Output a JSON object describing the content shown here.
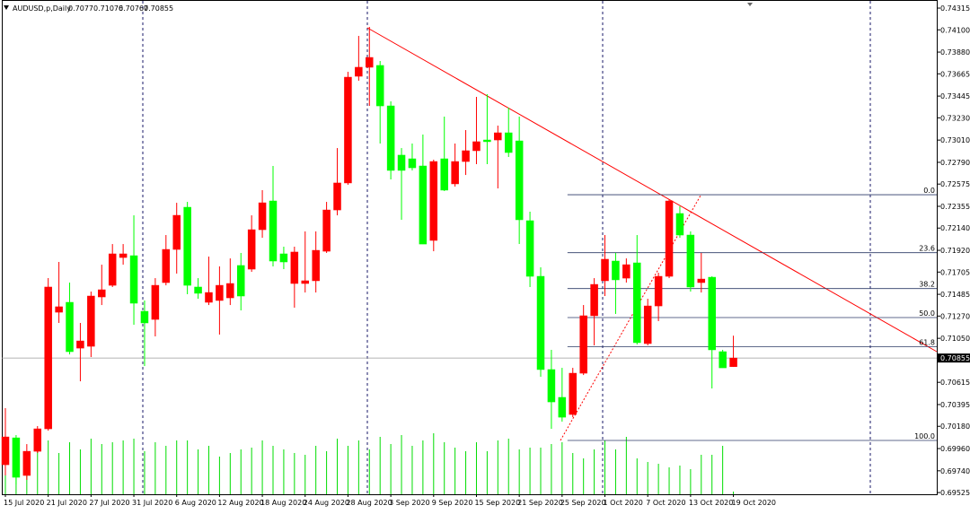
{
  "chart_data": {
    "type": "candlestick",
    "title": "AUDUSD,p,Daily",
    "categories": [
      "15 Jul 2020",
      null,
      null,
      null,
      "21 Jul 2020",
      null,
      null,
      null,
      "27 Jul 2020",
      null,
      null,
      null,
      "31 Jul 2020",
      null,
      null,
      null,
      "6 Aug 2020",
      null,
      null,
      null,
      "12 Aug 2020",
      null,
      null,
      null,
      "18 Aug 2020",
      null,
      null,
      null,
      "24 Aug 2020",
      null,
      null,
      null,
      "28 Aug 2020",
      null,
      null,
      null,
      "3 Sep 2020",
      null,
      null,
      null,
      "9 Sep 2020",
      null,
      null,
      null,
      "15 Sep 2020",
      null,
      null,
      null,
      "21 Sep 2020",
      null,
      null,
      null,
      "25 Sep 2020",
      null,
      null,
      null,
      "1 Oct 2020",
      null,
      null,
      null,
      "7 Oct 2020",
      null,
      null,
      null,
      "13 Oct 2020",
      null,
      null,
      null,
      "19 Oct 2020"
    ],
    "open": [
      0.698,
      0.70066,
      0.69694,
      0.69933,
      0.70155,
      0.71308,
      0.71406,
      0.70953,
      0.70971,
      0.71459,
      0.71574,
      0.71849,
      0.71867,
      0.71317,
      0.71237,
      0.71601,
      0.71929,
      0.72346,
      0.71557,
      0.71406,
      0.71424,
      0.7145,
      0.7177,
      0.71734,
      0.72124,
      0.72408,
      0.71885,
      0.71592,
      0.71592,
      0.71619,
      0.71911,
      0.72319,
      0.72586,
      0.73641,
      0.7373,
      0.73748,
      0.73348,
      0.72861,
      0.72825,
      0.72754,
      0.72018,
      0.72825,
      0.72577,
      0.72798,
      0.72905,
      0.73011,
      0.73011,
      0.73082,
      0.73002,
      0.72213,
      0.71663,
      0.70741,
      0.70466,
      0.70297,
      0.70705,
      0.71273,
      0.71619,
      0.71814,
      0.71645,
      0.71796,
      0.70998,
      0.7137,
      0.71663,
      0.72284,
      0.72071,
      0.71601,
      0.71654,
      0.70918,
      0.7077
    ],
    "high": [
      0.70359,
      0.70093,
      0.70004,
      0.70182,
      0.71645,
      0.71805,
      0.71601,
      0.71202,
      0.71512,
      0.71778,
      0.71982,
      0.71982,
      0.72266,
      0.71424,
      0.71645,
      0.72071,
      0.7239,
      0.72399,
      0.71645,
      0.71858,
      0.71761,
      0.7184,
      0.71894,
      0.72266,
      0.72515,
      0.72754,
      0.71956,
      0.71956,
      0.72107,
      0.72107,
      0.72399,
      0.72931,
      0.73685,
      0.7404,
      0.74129,
      0.73792,
      0.73393,
      0.72931,
      0.72976,
      0.73065,
      0.72816,
      0.73242,
      0.72976,
      0.73109,
      0.73437,
      0.73464,
      0.73153,
      0.73331,
      0.73242,
      0.72302,
      0.71752,
      0.70936,
      0.70758,
      0.70758,
      0.71379,
      0.71645,
      0.72071,
      0.71894,
      0.7184,
      0.72071,
      0.71441,
      0.71699,
      0.72426,
      0.72355,
      0.72107,
      0.71894,
      0.71663,
      0.70936,
      0.71076
    ],
    "low": [
      0.69694,
      0.69605,
      0.6965,
      0.69916,
      0.70137,
      0.71202,
      0.70891,
      0.70625,
      0.70865,
      0.71379,
      0.71557,
      0.71778,
      0.71184,
      0.70776,
      0.71069,
      0.71574,
      0.7169,
      0.71486,
      0.71441,
      0.71379,
      0.71087,
      0.71379,
      0.71326,
      0.71707,
      0.72044,
      0.71761,
      0.71734,
      0.71353,
      0.71503,
      0.71503,
      0.71894,
      0.72266,
      0.72568,
      0.73597,
      0.73348,
      0.72976,
      0.72621,
      0.72222,
      0.7271,
      0.71982,
      0.71911,
      0.72506,
      0.7255,
      0.72665,
      0.72772,
      0.72772,
      0.72532,
      0.72843,
      0.71982,
      0.71557,
      0.7067,
      0.70155,
      0.70226,
      0.7027,
      0.70687,
      0.7098,
      0.71468,
      0.71291,
      0.71601,
      0.70989,
      0.7098,
      0.7122,
      0.71645,
      0.72044,
      0.71512,
      0.71503,
      0.70554,
      0.70758,
      0.70767
    ],
    "close": [
      0.70075,
      0.69676,
      0.69933,
      0.70155,
      0.71557,
      0.71362,
      0.70918,
      0.71024,
      0.71468,
      0.7153,
      0.71885,
      0.71885,
      0.71397,
      0.71202,
      0.71574,
      0.71929,
      0.72266,
      0.71574,
      0.71495,
      0.71503,
      0.71574,
      0.71592,
      0.71468,
      0.72124,
      0.7239,
      0.71814,
      0.71805,
      0.71903,
      0.71619,
      0.7192,
      0.72319,
      0.72586,
      0.73632,
      0.7373,
      0.73827,
      0.73348,
      0.7271,
      0.7271,
      0.72736,
      0.71982,
      0.72798,
      0.72515,
      0.72798,
      0.72905,
      0.72994,
      0.72994,
      0.73082,
      0.72887,
      0.72222,
      0.71663,
      0.70741,
      0.70421,
      0.7027,
      0.70705,
      0.71273,
      0.71583,
      0.71832,
      0.71628,
      0.71778,
      0.71007,
      0.7137,
      0.71663,
      0.72408,
      0.72071,
      0.71557,
      0.71636,
      0.70936,
      0.70758,
      0.70855
    ],
    "volume": [
      64,
      50,
      36,
      56,
      60,
      46,
      58,
      50,
      62,
      56,
      58,
      60,
      62,
      48,
      58,
      54,
      60,
      60,
      50,
      54,
      42,
      46,
      50,
      52,
      60,
      54,
      50,
      46,
      44,
      54,
      48,
      62,
      54,
      60,
      50,
      64,
      56,
      66,
      54,
      60,
      68,
      58,
      52,
      48,
      58,
      48,
      60,
      62,
      50,
      52,
      52,
      56,
      58,
      46,
      40,
      50,
      60,
      50,
      64,
      40,
      36,
      34,
      30,
      32,
      28,
      44,
      44,
      54,
      3
    ],
    "up_color": "#ff0000",
    "down_color": "#00ff00",
    "volume_color": "#00dd00",
    "ylim": [
      0.69508,
      0.74395
    ],
    "yticks": [
      0.74315,
      {
        "value": 0.741,
        "label": "0.74100"
      },
      {
        "value": 0.7388,
        "label": "0.73880"
      },
      0.73665,
      0.73445,
      {
        "value": 0.7323,
        "label": "0.73230"
      },
      {
        "value": 0.7301,
        "label": "0.73010"
      },
      {
        "value": 0.7279,
        "label": "0.72790"
      },
      0.72575,
      0.72355,
      {
        "value": 0.7214,
        "label": "0.72140"
      },
      {
        "value": 0.7192,
        "label": "0.71920"
      },
      0.71705,
      0.71485,
      {
        "value": 0.7127,
        "label": "0.71270"
      },
      {
        "value": 0.7105,
        "label": "0.71050"
      },
      0.70615,
      0.70395,
      {
        "value": 0.7018,
        "label": "0.70180"
      },
      {
        "value": 0.6996,
        "label": "0.69960"
      },
      {
        "value": 0.6974,
        "label": "0.69740"
      },
      0.69525
    ],
    "fibonacci": {
      "high": 0.7247,
      "low": 0.7004,
      "color": "#2b3a67",
      "levels": [
        {
          "value": 0,
          "label": "0.0"
        },
        23.6,
        38.2,
        {
          "value": 50,
          "label": "50.0"
        },
        61.8,
        {
          "value": 100,
          "label": "100.0"
        }
      ]
    }
  }
}
